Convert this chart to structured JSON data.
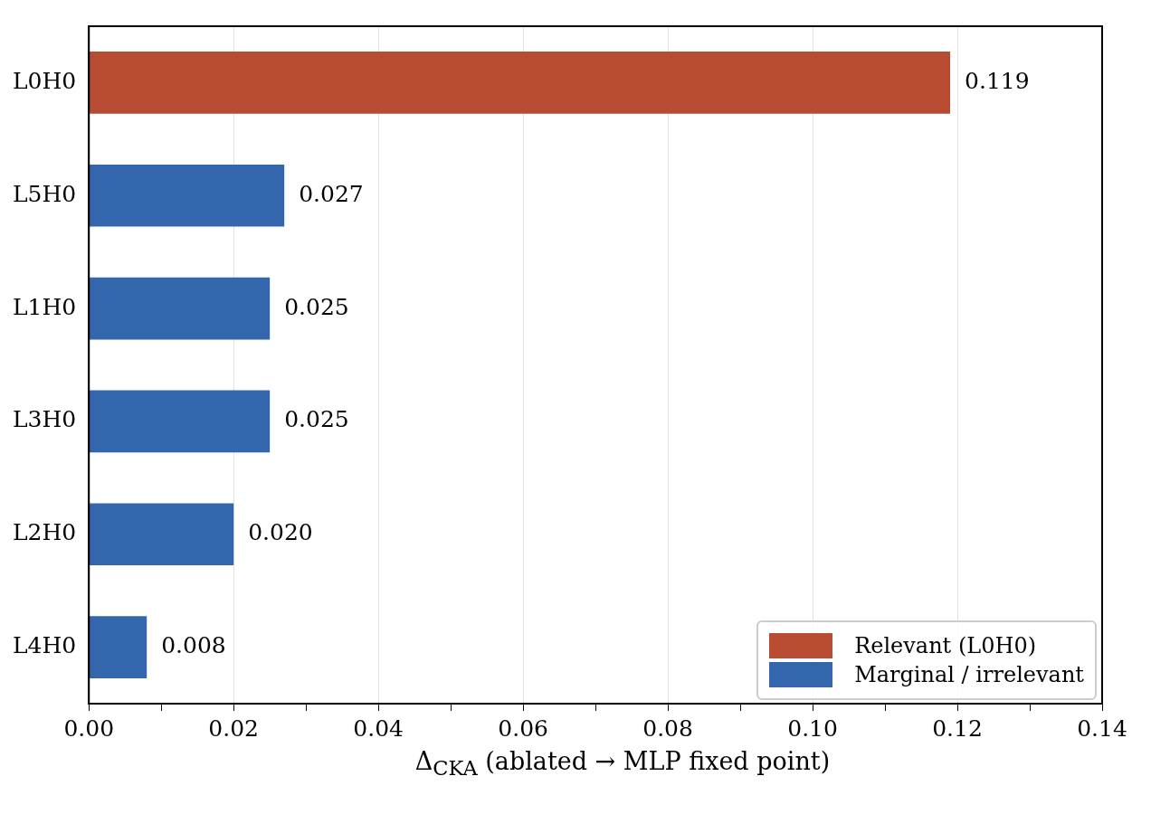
{
  "chart_data": {
    "type": "bar",
    "orientation": "horizontal",
    "stacked": true,
    "categories": [
      "L0H0",
      "L5H0",
      "L1H0",
      "L3H0",
      "L2H0",
      "L4H0"
    ],
    "series": [
      {
        "name": "Relevant (L0H0)",
        "color": "#b84c33",
        "values": [
          0.119,
          null,
          null,
          null,
          null,
          null
        ],
        "value_labels": [
          "0.119",
          null,
          null,
          null,
          null,
          null
        ]
      },
      {
        "name": "Marginal / irrelevant",
        "color": "#3366ad",
        "values": [
          null,
          0.027,
          0.025,
          0.025,
          0.02,
          0.008
        ],
        "value_labels": [
          null,
          "0.027",
          "0.025",
          "0.025",
          "0.020",
          "0.008"
        ]
      }
    ],
    "xlabel": "Δ$_{CKA}$ (ablated → MLP fixed point)",
    "xlim": [
      0,
      0.14
    ],
    "xticks": [
      {
        "value": 0,
        "label": "0.00"
      },
      {
        "value": 0.01,
        "label": null
      },
      {
        "value": 0.02,
        "label": "0.02"
      },
      {
        "value": 0.03,
        "label": null
      },
      {
        "value": 0.04,
        "label": "0.04"
      },
      {
        "value": 0.05,
        "label": null
      },
      {
        "value": 0.06,
        "label": "0.06"
      },
      {
        "value": 0.07,
        "label": null
      },
      {
        "value": 0.08,
        "label": "0.08"
      },
      {
        "value": 0.09,
        "label": null
      },
      {
        "value": 0.1,
        "label": "0.10"
      },
      {
        "value": 0.11,
        "label": null
      },
      {
        "value": 0.12,
        "label": "0.12"
      },
      {
        "value": 0.13,
        "label": null
      },
      {
        "value": 0.14,
        "label": "0.14"
      }
    ],
    "grid": "x",
    "legend": "bottom right"
  }
}
